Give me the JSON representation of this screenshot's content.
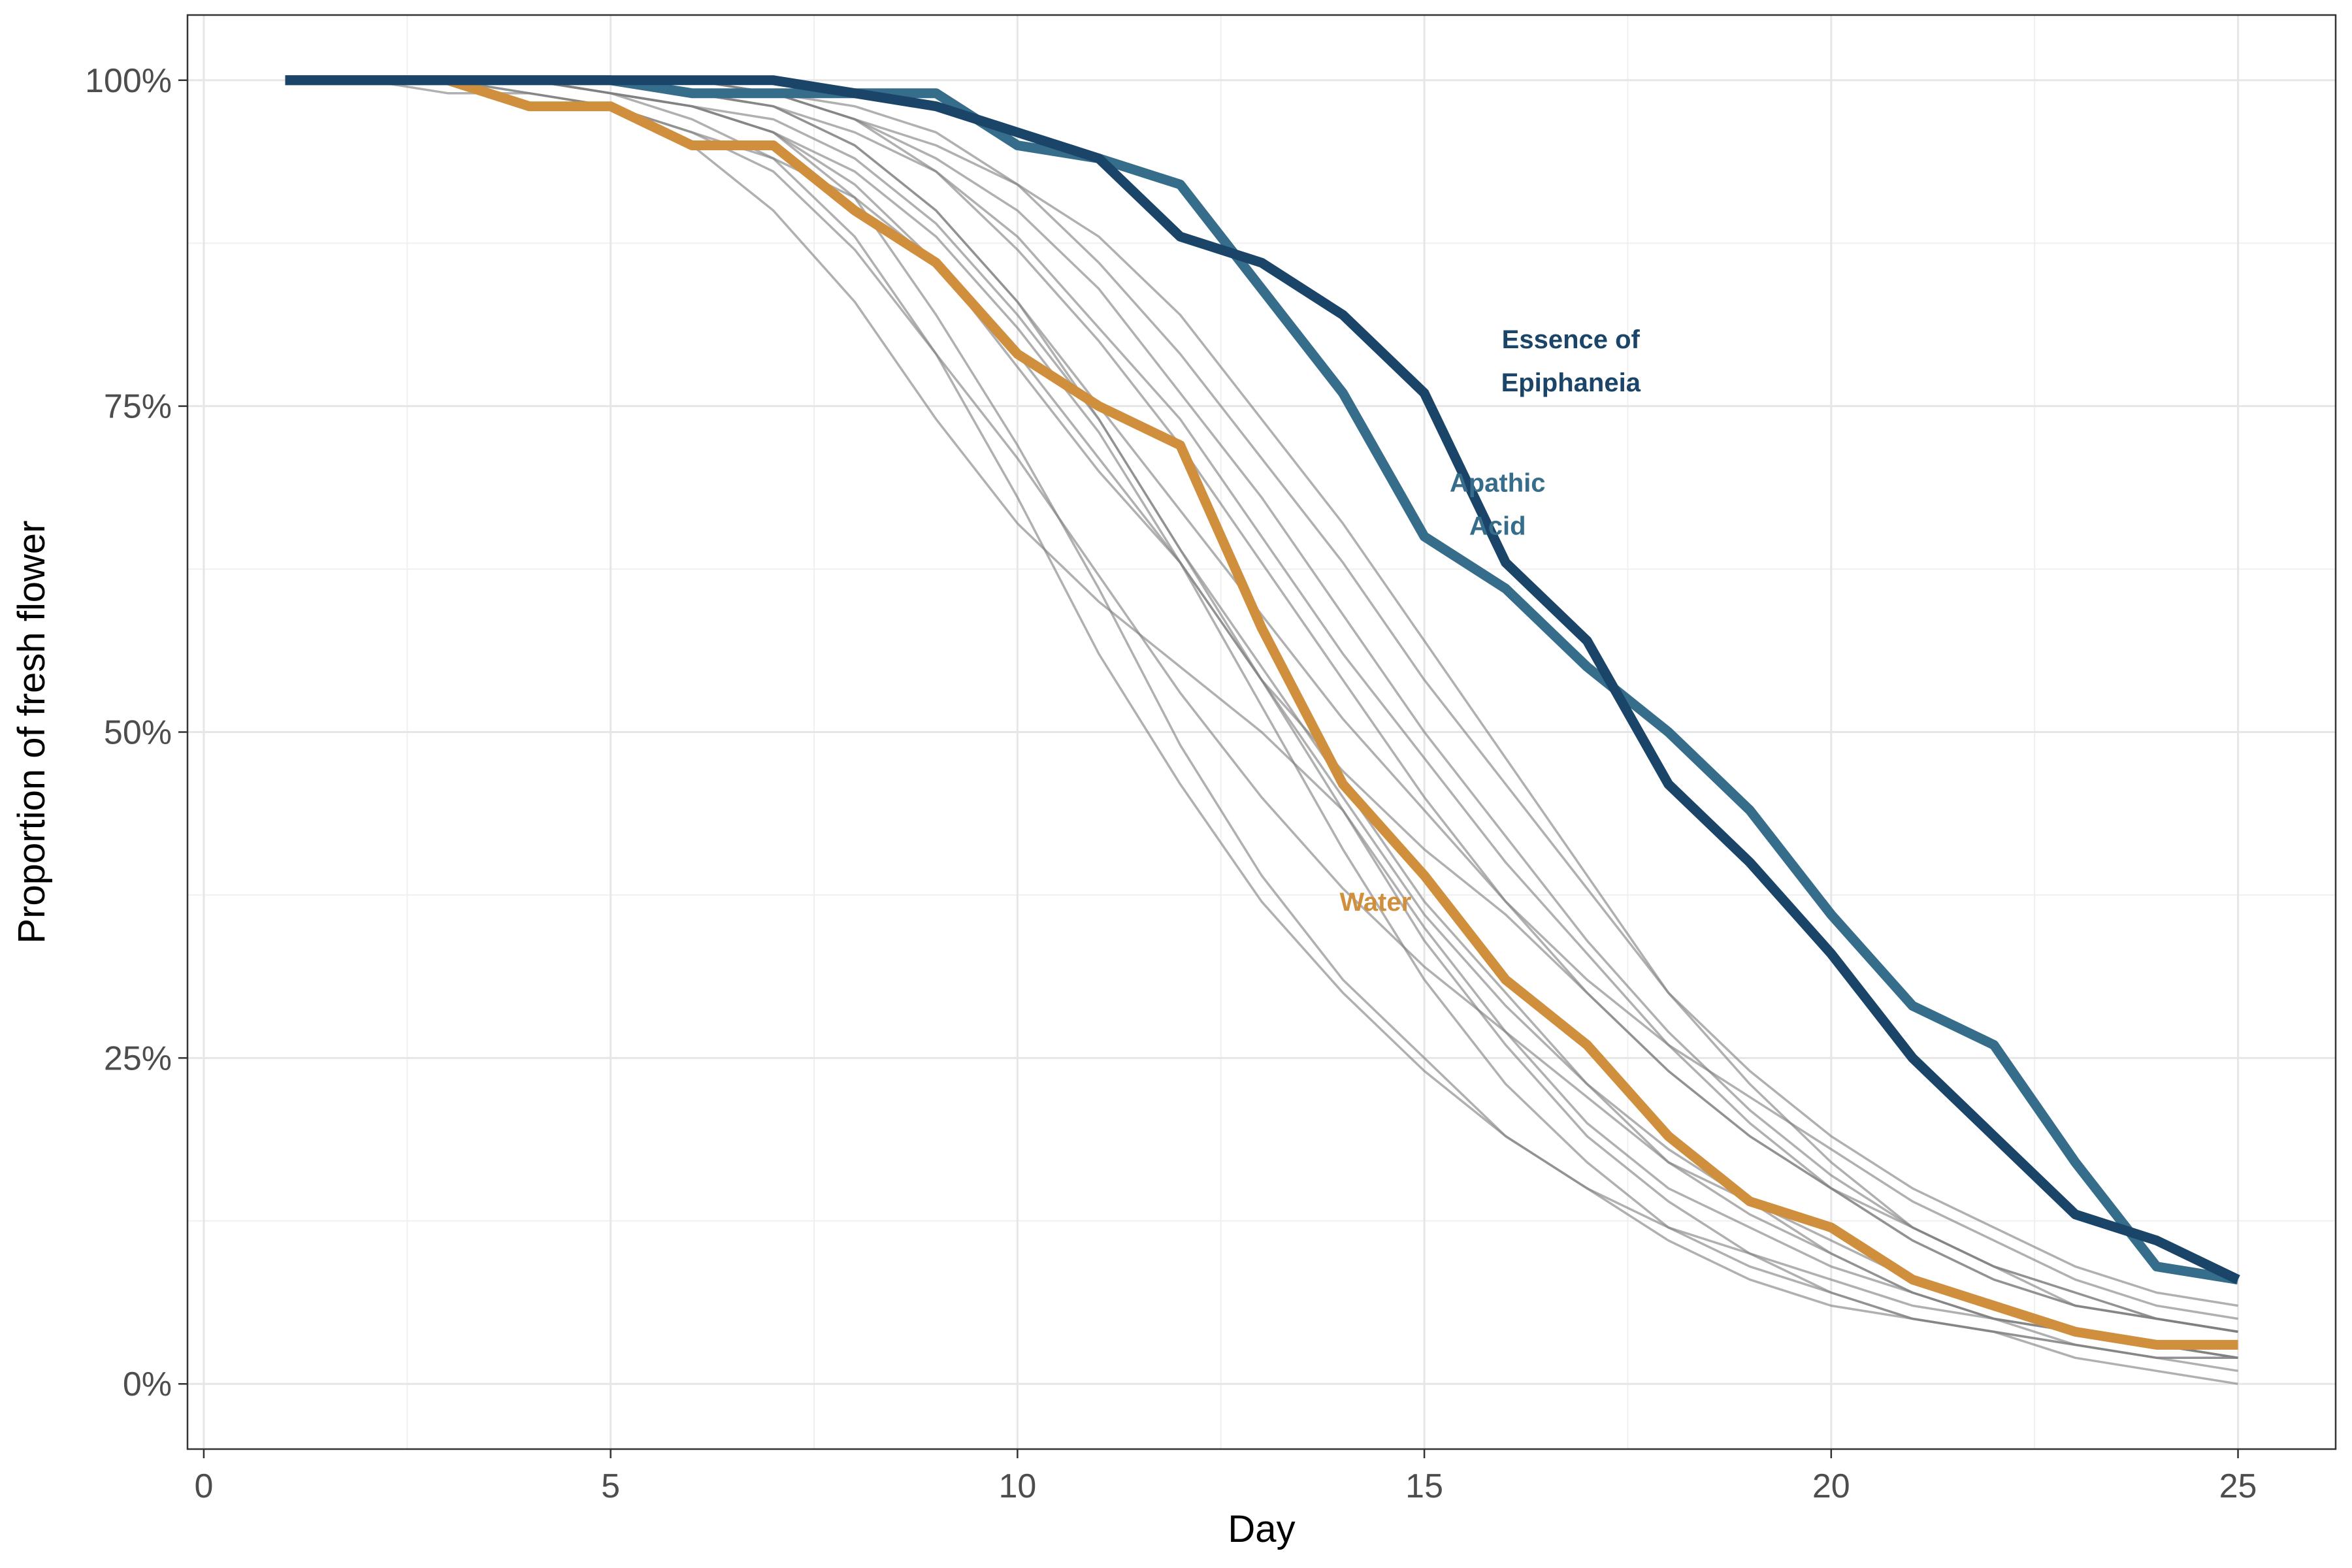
{
  "chart_data": {
    "type": "line",
    "title": "",
    "xlabel": "Day",
    "ylabel": "Proportion of fresh flower",
    "xlim": [
      -0.2,
      26.2
    ],
    "ylim": [
      -0.05,
      1.05
    ],
    "x_ticks": [
      0,
      5,
      10,
      15,
      20,
      25
    ],
    "x_tick_labels": [
      "0",
      "5",
      "10",
      "15",
      "20",
      "25"
    ],
    "y_ticks": [
      0,
      0.25,
      0.5,
      0.75,
      1
    ],
    "y_tick_labels": [
      "0%",
      "25%",
      "50%",
      "75%",
      "100%"
    ],
    "grid": true,
    "legend": "none",
    "x": [
      1,
      2,
      3,
      4,
      5,
      6,
      7,
      8,
      9,
      10,
      11,
      12,
      13,
      14,
      15,
      16,
      17,
      18,
      19,
      20,
      21,
      22,
      23,
      24,
      25
    ],
    "highlighted_series": [
      {
        "name": "Water",
        "label_lines": [
          "Water"
        ],
        "label_pos": [
          14.4,
          0.37
        ],
        "color": "#d08f3d",
        "values": [
          1.0,
          1.0,
          1.0,
          0.98,
          0.98,
          0.95,
          0.95,
          0.9,
          0.86,
          0.79,
          0.75,
          0.72,
          0.58,
          0.46,
          0.39,
          0.31,
          0.26,
          0.19,
          0.14,
          0.12,
          0.08,
          0.06,
          0.04,
          0.03,
          0.03
        ]
      },
      {
        "name": "Apathic Acid",
        "label_lines": [
          "Apathic",
          "Acid"
        ],
        "label_pos": [
          15.9,
          0.675
        ],
        "color": "#356d8a",
        "values": [
          1.0,
          1.0,
          1.0,
          1.0,
          1.0,
          0.99,
          0.99,
          0.99,
          0.99,
          0.95,
          0.94,
          0.92,
          0.84,
          0.76,
          0.65,
          0.61,
          0.55,
          0.5,
          0.44,
          0.36,
          0.29,
          0.26,
          0.17,
          0.09,
          0.08
        ]
      },
      {
        "name": "Essence of Epiphaneia",
        "label_lines": [
          "Essence of",
          "Epiphaneia"
        ],
        "label_pos": [
          16.8,
          0.785
        ],
        "color": "#1a4468",
        "values": [
          1.0,
          1.0,
          1.0,
          1.0,
          1.0,
          1.0,
          1.0,
          0.99,
          0.98,
          0.96,
          0.94,
          0.88,
          0.86,
          0.82,
          0.76,
          0.63,
          0.57,
          0.46,
          0.4,
          0.33,
          0.25,
          0.19,
          0.13,
          0.11,
          0.08
        ]
      }
    ],
    "background_series": [
      {
        "values": [
          1.0,
          1.0,
          1.0,
          0.99,
          0.98,
          0.96,
          0.94,
          0.91,
          0.86,
          0.78,
          0.7,
          0.63,
          0.54,
          0.47,
          0.41,
          0.36,
          0.3,
          0.24,
          0.19,
          0.15,
          0.11,
          0.08,
          0.06,
          0.05,
          0.04
        ]
      },
      {
        "values": [
          1.0,
          1.0,
          0.99,
          0.99,
          0.98,
          0.96,
          0.93,
          0.87,
          0.79,
          0.71,
          0.62,
          0.53,
          0.45,
          0.38,
          0.32,
          0.27,
          0.22,
          0.17,
          0.14,
          0.11,
          0.08,
          0.06,
          0.04,
          0.03,
          0.02
        ]
      },
      {
        "values": [
          1.0,
          1.0,
          1.0,
          1.0,
          0.99,
          0.98,
          0.96,
          0.92,
          0.86,
          0.79,
          0.71,
          0.63,
          0.54,
          0.45,
          0.36,
          0.29,
          0.23,
          0.17,
          0.13,
          0.1,
          0.07,
          0.05,
          0.04,
          0.03,
          0.02
        ]
      },
      {
        "values": [
          1.0,
          1.0,
          1.0,
          1.0,
          0.99,
          0.98,
          0.97,
          0.94,
          0.89,
          0.82,
          0.74,
          0.64,
          0.55,
          0.46,
          0.37,
          0.3,
          0.23,
          0.18,
          0.14,
          0.1,
          0.07,
          0.05,
          0.03,
          0.02,
          0.02
        ]
      },
      {
        "values": [
          1.0,
          1.0,
          1.0,
          0.99,
          0.98,
          0.95,
          0.9,
          0.83,
          0.74,
          0.66,
          0.6,
          0.55,
          0.5,
          0.44,
          0.35,
          0.27,
          0.2,
          0.15,
          0.12,
          0.09,
          0.07,
          0.05,
          0.04,
          0.03,
          0.02
        ]
      },
      {
        "values": [
          1.0,
          1.0,
          1.0,
          1.0,
          0.99,
          0.98,
          0.96,
          0.91,
          0.82,
          0.72,
          0.61,
          0.49,
          0.39,
          0.31,
          0.25,
          0.19,
          0.15,
          0.11,
          0.08,
          0.06,
          0.05,
          0.04,
          0.03,
          0.02,
          0.02
        ]
      },
      {
        "values": [
          1.0,
          1.0,
          1.0,
          1.0,
          1.0,
          0.99,
          0.98,
          0.96,
          0.93,
          0.88,
          0.81,
          0.74,
          0.65,
          0.56,
          0.48,
          0.4,
          0.33,
          0.26,
          0.2,
          0.15,
          0.11,
          0.08,
          0.06,
          0.05,
          0.04
        ]
      },
      {
        "values": [
          1.0,
          1.0,
          1.0,
          1.0,
          1.0,
          1.0,
          0.99,
          0.97,
          0.94,
          0.9,
          0.84,
          0.76,
          0.68,
          0.59,
          0.5,
          0.42,
          0.34,
          0.27,
          0.21,
          0.16,
          0.12,
          0.09,
          0.07,
          0.05,
          0.04
        ]
      },
      {
        "values": [
          1.0,
          1.0,
          1.0,
          1.0,
          1.0,
          0.99,
          0.98,
          0.95,
          0.9,
          0.83,
          0.75,
          0.67,
          0.59,
          0.51,
          0.44,
          0.37,
          0.31,
          0.26,
          0.22,
          0.18,
          0.14,
          0.11,
          0.08,
          0.06,
          0.05
        ]
      },
      {
        "values": [
          1.0,
          1.0,
          1.0,
          1.0,
          1.0,
          1.0,
          0.99,
          0.98,
          0.96,
          0.92,
          0.86,
          0.79,
          0.71,
          0.63,
          0.54,
          0.46,
          0.38,
          0.3,
          0.24,
          0.19,
          0.15,
          0.12,
          0.09,
          0.07,
          0.06
        ]
      },
      {
        "values": [
          1.0,
          1.0,
          1.0,
          1.0,
          1.0,
          0.99,
          0.99,
          0.97,
          0.95,
          0.92,
          0.88,
          0.82,
          0.74,
          0.66,
          0.57,
          0.48,
          0.39,
          0.3,
          0.23,
          0.17,
          0.12,
          0.09,
          0.06,
          0.05,
          0.04
        ]
      },
      {
        "values": [
          1.0,
          1.0,
          1.0,
          1.0,
          0.99,
          0.98,
          0.96,
          0.93,
          0.88,
          0.81,
          0.73,
          0.63,
          0.52,
          0.41,
          0.31,
          0.23,
          0.17,
          0.12,
          0.09,
          0.07,
          0.05,
          0.04,
          0.03,
          0.02,
          0.01
        ]
      },
      {
        "values": [
          1.0,
          1.0,
          1.0,
          1.0,
          1.0,
          1.0,
          0.99,
          0.97,
          0.93,
          0.87,
          0.8,
          0.72,
          0.63,
          0.54,
          0.45,
          0.37,
          0.3,
          0.24,
          0.19,
          0.15,
          0.12,
          0.09,
          0.07,
          0.05,
          0.04
        ]
      },
      {
        "values": [
          1.0,
          1.0,
          1.0,
          1.0,
          0.99,
          0.97,
          0.94,
          0.88,
          0.79,
          0.68,
          0.56,
          0.46,
          0.37,
          0.3,
          0.24,
          0.19,
          0.15,
          0.12,
          0.1,
          0.08,
          0.06,
          0.05,
          0.04,
          0.03,
          0.02
        ]
      },
      {
        "values": [
          1.0,
          1.0,
          1.0,
          1.0,
          1.0,
          0.99,
          0.98,
          0.95,
          0.9,
          0.83,
          0.74,
          0.64,
          0.54,
          0.44,
          0.34,
          0.26,
          0.19,
          0.14,
          0.1,
          0.07,
          0.05,
          0.04,
          0.02,
          0.01,
          0.0
        ]
      }
    ]
  }
}
